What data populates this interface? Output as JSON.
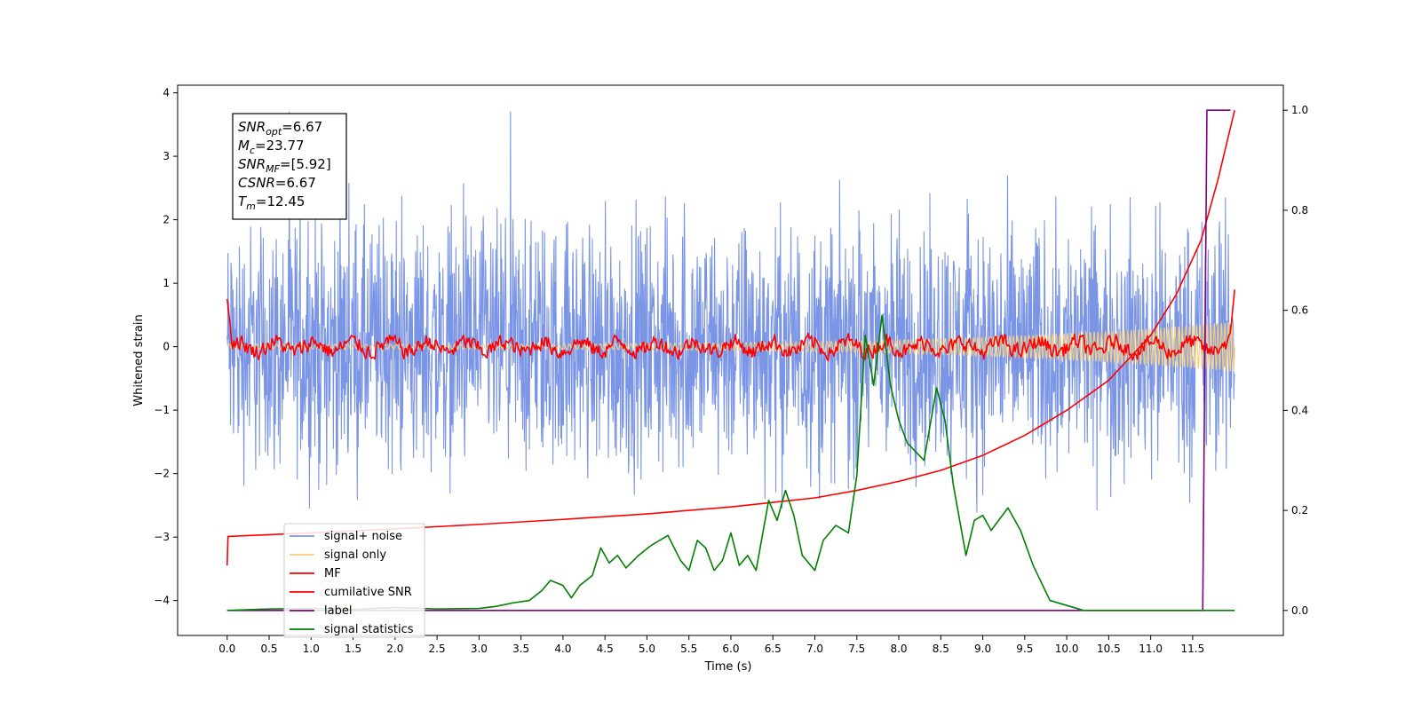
{
  "chart_data": {
    "type": "line",
    "xlabel": "Time (s)",
    "ylabel": "Whitened strain",
    "xlim": [
      -0.59,
      12.58
    ],
    "ylim": [
      -4.55,
      4.12
    ],
    "y2lim": [
      -0.05,
      1.05
    ],
    "x_ticks": [
      "0.0",
      "0.5",
      "1.0",
      "1.5",
      "2.0",
      "2.5",
      "3.0",
      "3.5",
      "4.0",
      "4.5",
      "5.0",
      "5.5",
      "6.0",
      "6.5",
      "7.0",
      "7.5",
      "8.0",
      "8.5",
      "9.0",
      "9.5",
      "10.0",
      "10.5",
      "11.0",
      "11.5"
    ],
    "y_ticks": [
      "−4",
      "−3",
      "−2",
      "−1",
      "0",
      "1",
      "2",
      "3",
      "4"
    ],
    "y2_ticks": [
      "0.0",
      "0.2",
      "0.4",
      "0.6",
      "0.8",
      "1.0"
    ],
    "grid": false,
    "legend_position": "bottom-left",
    "annotation": {
      "lines": [
        {
          "sym": "SNR",
          "sub": "opt",
          "val": "=6.67"
        },
        {
          "sym": "M",
          "sub": "c",
          "val": "=23.77"
        },
        {
          "sym": "SNR",
          "sub": "MF",
          "val": "=[5.92]"
        },
        {
          "sym": "CSNR",
          "sub": "",
          "val": "=6.67"
        },
        {
          "sym": "T",
          "sub": "m",
          "val": "=12.45"
        }
      ]
    },
    "series": [
      {
        "name": "signal+ noise",
        "color": "#7b95e6",
        "axis": "left",
        "kind": "noise",
        "x_range": [
          0.0,
          12.0
        ],
        "envelope": [
          -3.6,
          3.7
        ]
      },
      {
        "name": "signal only",
        "color": "#f7cf7d",
        "axis": "left",
        "kind": "chirp",
        "x_range": [
          0.0,
          12.0
        ],
        "amplitude_end": 0.35
      },
      {
        "name": "MF",
        "color": "#ff0000",
        "axis": "left",
        "kind": "noise-small",
        "x_range": [
          0.0,
          12.0
        ],
        "values_start": 0.75,
        "values_end": 0.9
      },
      {
        "name": "cumilative SNR",
        "color": "#ff0000",
        "axis": "right",
        "x": [
          0.0,
          0.01,
          1.0,
          2.0,
          3.0,
          4.0,
          5.0,
          6.0,
          7.0,
          7.5,
          8.0,
          8.5,
          9.0,
          9.5,
          10.0,
          10.5,
          11.0,
          11.3,
          11.6,
          11.8,
          12.0
        ],
        "values": [
          0.09,
          0.148,
          0.155,
          0.163,
          0.172,
          0.182,
          0.193,
          0.207,
          0.225,
          0.24,
          0.258,
          0.28,
          0.31,
          0.35,
          0.4,
          0.46,
          0.55,
          0.63,
          0.74,
          0.86,
          1.0
        ]
      },
      {
        "name": "label",
        "color": "#800080",
        "axis": "right",
        "x": [
          0.0,
          11.62,
          11.67,
          11.95
        ],
        "values": [
          0.0,
          0.0,
          1.0,
          1.0
        ]
      },
      {
        "name": "signal statistics",
        "color": "#008000",
        "axis": "right",
        "x": [
          0.0,
          0.5,
          1.0,
          1.5,
          2.0,
          2.5,
          3.0,
          3.2,
          3.4,
          3.6,
          3.75,
          3.85,
          4.0,
          4.1,
          4.2,
          4.35,
          4.45,
          4.55,
          4.65,
          4.75,
          4.9,
          5.05,
          5.15,
          5.25,
          5.4,
          5.5,
          5.6,
          5.7,
          5.8,
          5.9,
          6.0,
          6.1,
          6.2,
          6.3,
          6.45,
          6.55,
          6.65,
          6.75,
          6.85,
          7.0,
          7.1,
          7.25,
          7.4,
          7.5,
          7.6,
          7.7,
          7.8,
          7.9,
          8.0,
          8.1,
          8.3,
          8.45,
          8.55,
          8.65,
          8.8,
          8.9,
          9.0,
          9.1,
          9.3,
          9.45,
          9.6,
          9.8,
          10.0,
          10.2,
          10.4,
          11.0,
          12.0
        ],
        "values": [
          0.0,
          0.003,
          0.004,
          0.002,
          0.006,
          0.003,
          0.004,
          0.008,
          0.015,
          0.02,
          0.04,
          0.06,
          0.05,
          0.025,
          0.05,
          0.07,
          0.125,
          0.095,
          0.11,
          0.085,
          0.11,
          0.13,
          0.14,
          0.15,
          0.1,
          0.08,
          0.14,
          0.125,
          0.08,
          0.1,
          0.155,
          0.09,
          0.11,
          0.08,
          0.22,
          0.18,
          0.24,
          0.19,
          0.11,
          0.08,
          0.14,
          0.17,
          0.155,
          0.27,
          0.55,
          0.45,
          0.59,
          0.45,
          0.38,
          0.335,
          0.3,
          0.445,
          0.38,
          0.25,
          0.11,
          0.18,
          0.19,
          0.16,
          0.205,
          0.16,
          0.09,
          0.02,
          0.01,
          0.0,
          0.0,
          0.0,
          0.0
        ]
      }
    ]
  }
}
